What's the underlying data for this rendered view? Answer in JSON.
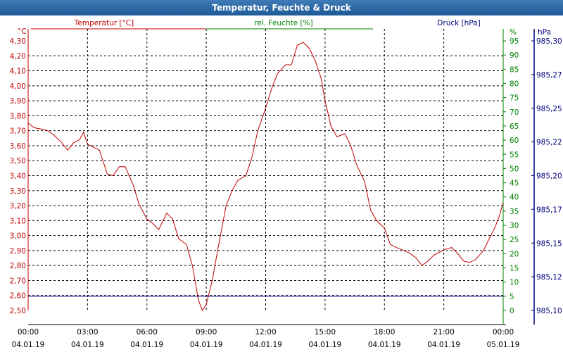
{
  "window": {
    "title": "Temperatur, Feuchte & Druck"
  },
  "colors": {
    "temperature": "#c00000",
    "humidity": "#008000",
    "pressure": "#000080",
    "grid": "#000000",
    "titlebar": "#2a64a4"
  },
  "chart_data": {
    "type": "line",
    "title": "Temperatur, Feuchte & Druck",
    "grid": true,
    "x": {
      "ticks": [
        {
          "time": "00:00",
          "date": "04.01.19"
        },
        {
          "time": "03:00",
          "date": "04.01.19"
        },
        {
          "time": "06:00",
          "date": "04.01.19"
        },
        {
          "time": "09:00",
          "date": "04.01.19"
        },
        {
          "time": "12:00",
          "date": "04.01.19"
        },
        {
          "time": "15:00",
          "date": "04.01.19"
        },
        {
          "time": "18:00",
          "date": "04.01.19"
        },
        {
          "time": "21:00",
          "date": "04.01.19"
        },
        {
          "time": "00:00",
          "date": "05.01.19"
        }
      ],
      "range_hours": [
        0,
        24
      ]
    },
    "axes": {
      "temperature": {
        "label": "Temperatur [°C]",
        "unit": "°C",
        "side": "left",
        "ylim": [
          2.5,
          4.3
        ],
        "ticks": [
          "4,30",
          "4,20",
          "4,10",
          "4,00",
          "3,90",
          "3,80",
          "3,70",
          "3,60",
          "3,50",
          "3,40",
          "3,30",
          "3,20",
          "3,10",
          "3,00",
          "2,90",
          "2,80",
          "2,70",
          "2,60",
          "2,50"
        ]
      },
      "humidity": {
        "label": "rel. Feuchte [%]",
        "unit": "%",
        "side": "right",
        "ylim": [
          0,
          95
        ],
        "ticks": [
          "95",
          "90",
          "85",
          "80",
          "75",
          "70",
          "65",
          "60",
          "55",
          "50",
          "45",
          "40",
          "35",
          "30",
          "25",
          "20",
          "15",
          "10",
          "5",
          "0"
        ]
      },
      "pressure": {
        "label": "Druck [hPa]",
        "unit": "hPa",
        "side": "right-outer",
        "ylim": [
          985.1,
          985.3
        ],
        "ticks": [
          "985,30",
          "985,27",
          "985,25",
          "985,22",
          "985,20",
          "985,17",
          "985,15",
          "985,12",
          "985,10"
        ]
      }
    },
    "series": [
      {
        "name": "Temperatur [°C]",
        "axis": "temperature",
        "x_hours": [
          0,
          0.3,
          0.7,
          1.0,
          1.3,
          1.7,
          2.0,
          2.3,
          2.6,
          2.8,
          3.0,
          3.3,
          3.6,
          4.0,
          4.3,
          4.6,
          4.9,
          5.3,
          5.6,
          6.0,
          6.3,
          6.6,
          7.0,
          7.3,
          7.6,
          8.0,
          8.3,
          8.6,
          8.8,
          9.0,
          9.3,
          9.6,
          10.0,
          10.3,
          10.6,
          11.0,
          11.3,
          11.6,
          12.0,
          12.3,
          12.6,
          13.0,
          13.3,
          13.6,
          13.9,
          14.2,
          14.5,
          14.8,
          15.0,
          15.3,
          15.6,
          16.0,
          16.3,
          16.6,
          17.0,
          17.3,
          17.6,
          18.0,
          18.3,
          18.6,
          19.0,
          19.3,
          19.6,
          19.9,
          20.2,
          20.5,
          20.8,
          21.1,
          21.4,
          21.7,
          22.0,
          22.3,
          22.6,
          23.0,
          23.3,
          23.6,
          23.8,
          24.0
        ],
        "values": [
          3.75,
          3.72,
          3.71,
          3.7,
          3.67,
          3.62,
          3.57,
          3.62,
          3.64,
          3.69,
          3.61,
          3.59,
          3.57,
          3.41,
          3.4,
          3.46,
          3.46,
          3.34,
          3.21,
          3.11,
          3.08,
          3.04,
          3.15,
          3.11,
          2.98,
          2.94,
          2.8,
          2.57,
          2.5,
          2.54,
          2.7,
          2.92,
          3.2,
          3.3,
          3.37,
          3.4,
          3.52,
          3.7,
          3.85,
          3.98,
          4.08,
          4.14,
          4.14,
          4.27,
          4.29,
          4.25,
          4.17,
          4.05,
          3.9,
          3.73,
          3.66,
          3.68,
          3.6,
          3.47,
          3.36,
          3.17,
          3.1,
          3.05,
          2.94,
          2.92,
          2.9,
          2.88,
          2.85,
          2.8,
          2.83,
          2.87,
          2.89,
          2.91,
          2.92,
          2.88,
          2.83,
          2.82,
          2.84,
          2.9,
          2.98,
          3.06,
          3.13,
          3.22
        ]
      },
      {
        "name": "rel. Feuchte [%]",
        "axis": "humidity",
        "x_hours": [
          0,
          24
        ],
        "values": [
          5,
          5
        ]
      }
    ]
  }
}
